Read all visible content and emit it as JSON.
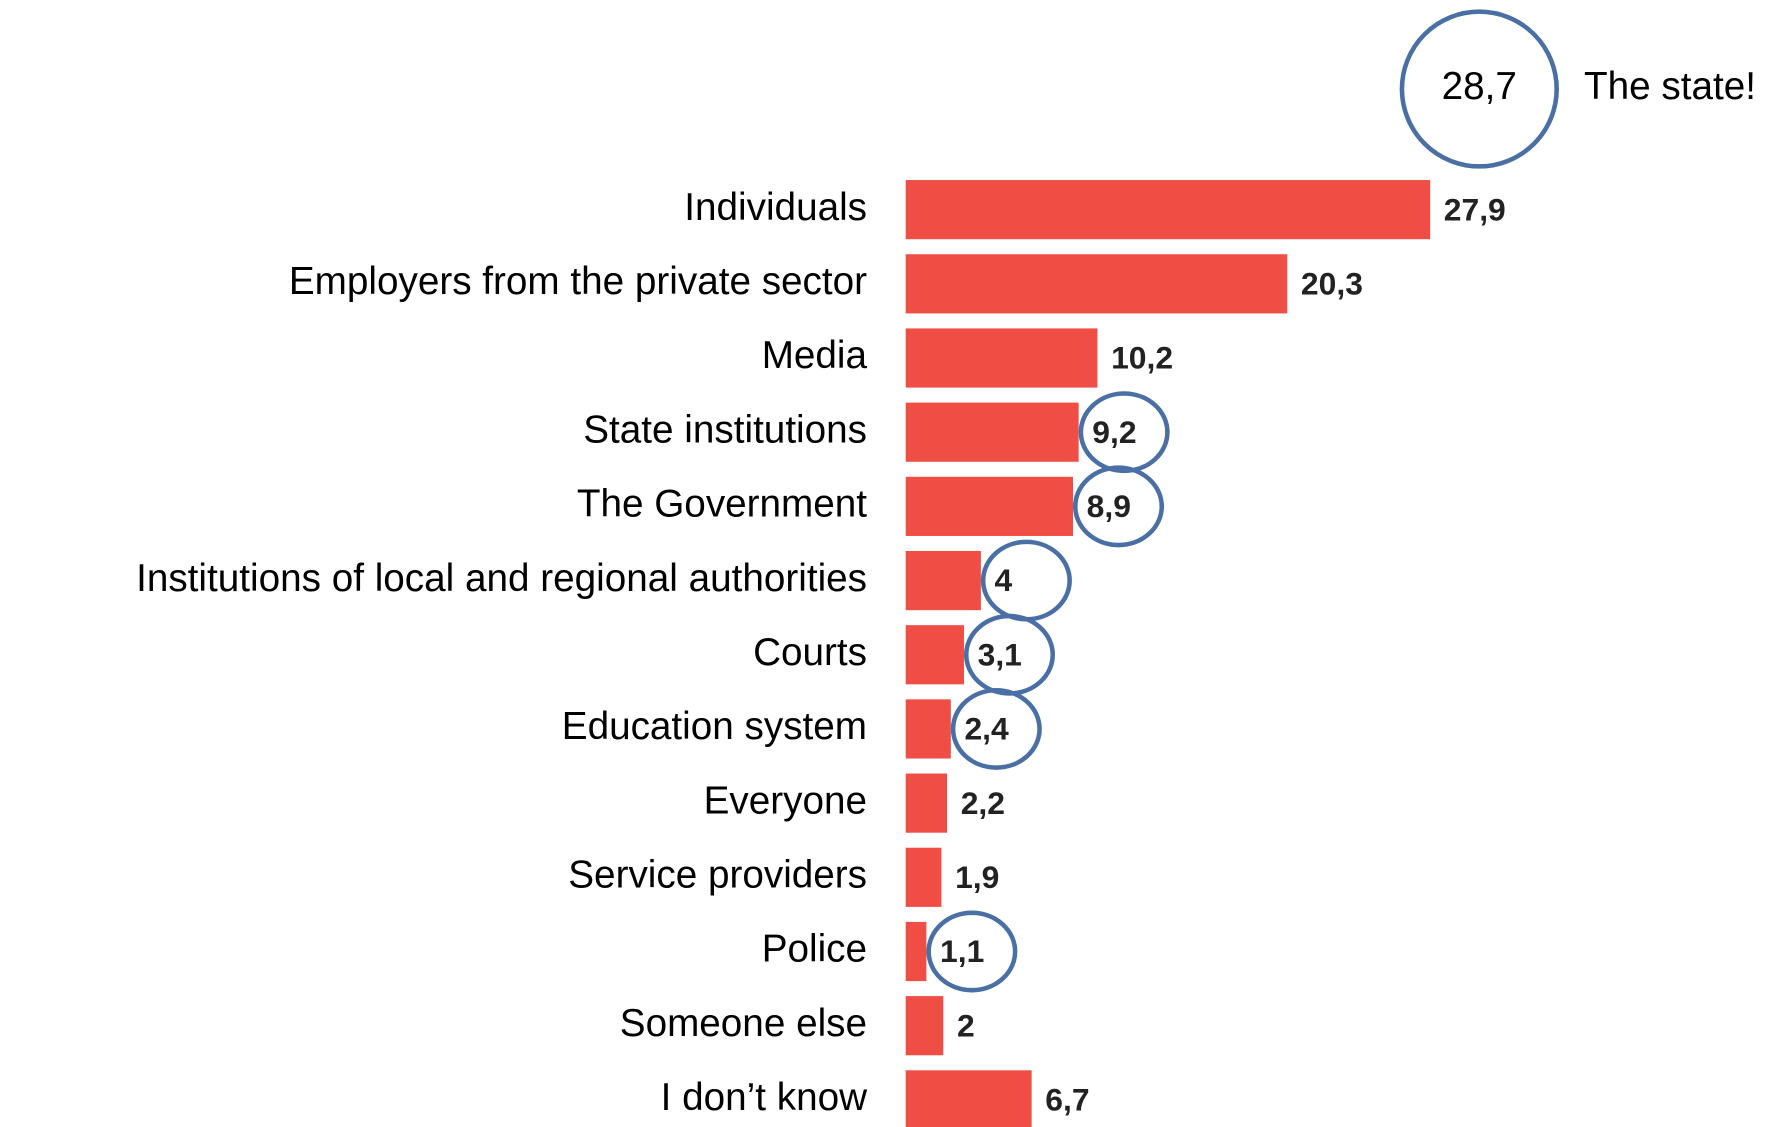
{
  "chart_data": {
    "type": "bar",
    "orientation": "horizontal",
    "categories": [
      "Individuals",
      "Employers from the private sector",
      "Media",
      "State institutions",
      "The Government",
      "Institutions of local and regional authorities",
      "Courts",
      "Education system",
      "Everyone",
      "Service providers",
      "Police",
      "Someone else",
      "I don’t know"
    ],
    "values": [
      27.9,
      20.3,
      10.2,
      9.2,
      8.9,
      4,
      3.1,
      2.4,
      2.2,
      1.9,
      1.1,
      2,
      6.7
    ],
    "value_labels": [
      "27,9",
      "20,3",
      "10,2",
      "9,2",
      "8,9",
      "4",
      "3,1",
      "2,4",
      "2,2",
      "1,9",
      "1,1",
      "2",
      "6,7"
    ],
    "color": "#f04e45",
    "highlight_color": "#4a6fa5",
    "highlighted": [
      3,
      4,
      5,
      6,
      7,
      10
    ],
    "annotations": [
      {
        "value": 28.7,
        "label": "28,7",
        "text": "The state!"
      }
    ]
  }
}
